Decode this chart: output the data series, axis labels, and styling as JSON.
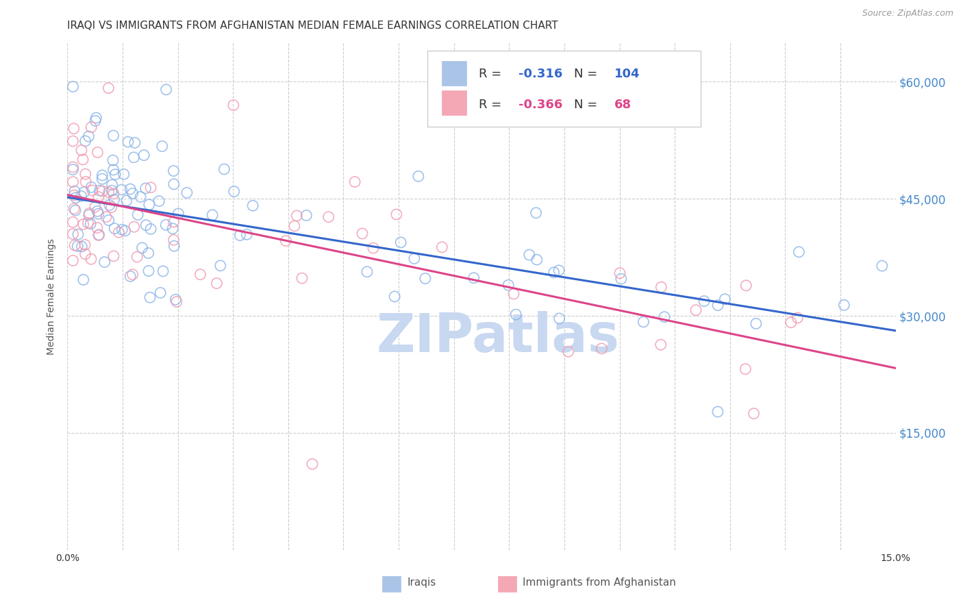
{
  "title": "IRAQI VS IMMIGRANTS FROM AFGHANISTAN MEDIAN FEMALE EARNINGS CORRELATION CHART",
  "source_text": "Source: ZipAtlas.com",
  "ylabel": "Median Female Earnings",
  "xlim": [
    0.0,
    0.15
  ],
  "ylim": [
    0,
    65000
  ],
  "ytick_values": [
    0,
    15000,
    30000,
    45000,
    60000
  ],
  "ytick_labels": [
    "",
    "$15,000",
    "$30,000",
    "$45,000",
    "$60,000"
  ],
  "background_color": "#ffffff",
  "grid_color": "#cccccc",
  "iraqis_edge_color": "#8ab4e8",
  "afghan_edge_color": "#f09ab0",
  "trendline_iraqi_color": "#3366cc",
  "trendline_afghan_color": "#dd4488",
  "legend_R_iraqi": "-0.316",
  "legend_N_iraqi": "104",
  "legend_R_afghan": "-0.366",
  "legend_N_afghan": "68",
  "watermark_text": "ZIPatlas",
  "watermark_color": "#c8d8f0",
  "title_fontsize": 11,
  "axis_label_fontsize": 10,
  "tick_fontsize": 10,
  "right_tick_color": "#4488cc",
  "trendline_iraqi_intercept": 45200,
  "trendline_iraqi_slope": -114000,
  "trendline_afghan_intercept": 45500,
  "trendline_afghan_slope": -148000
}
